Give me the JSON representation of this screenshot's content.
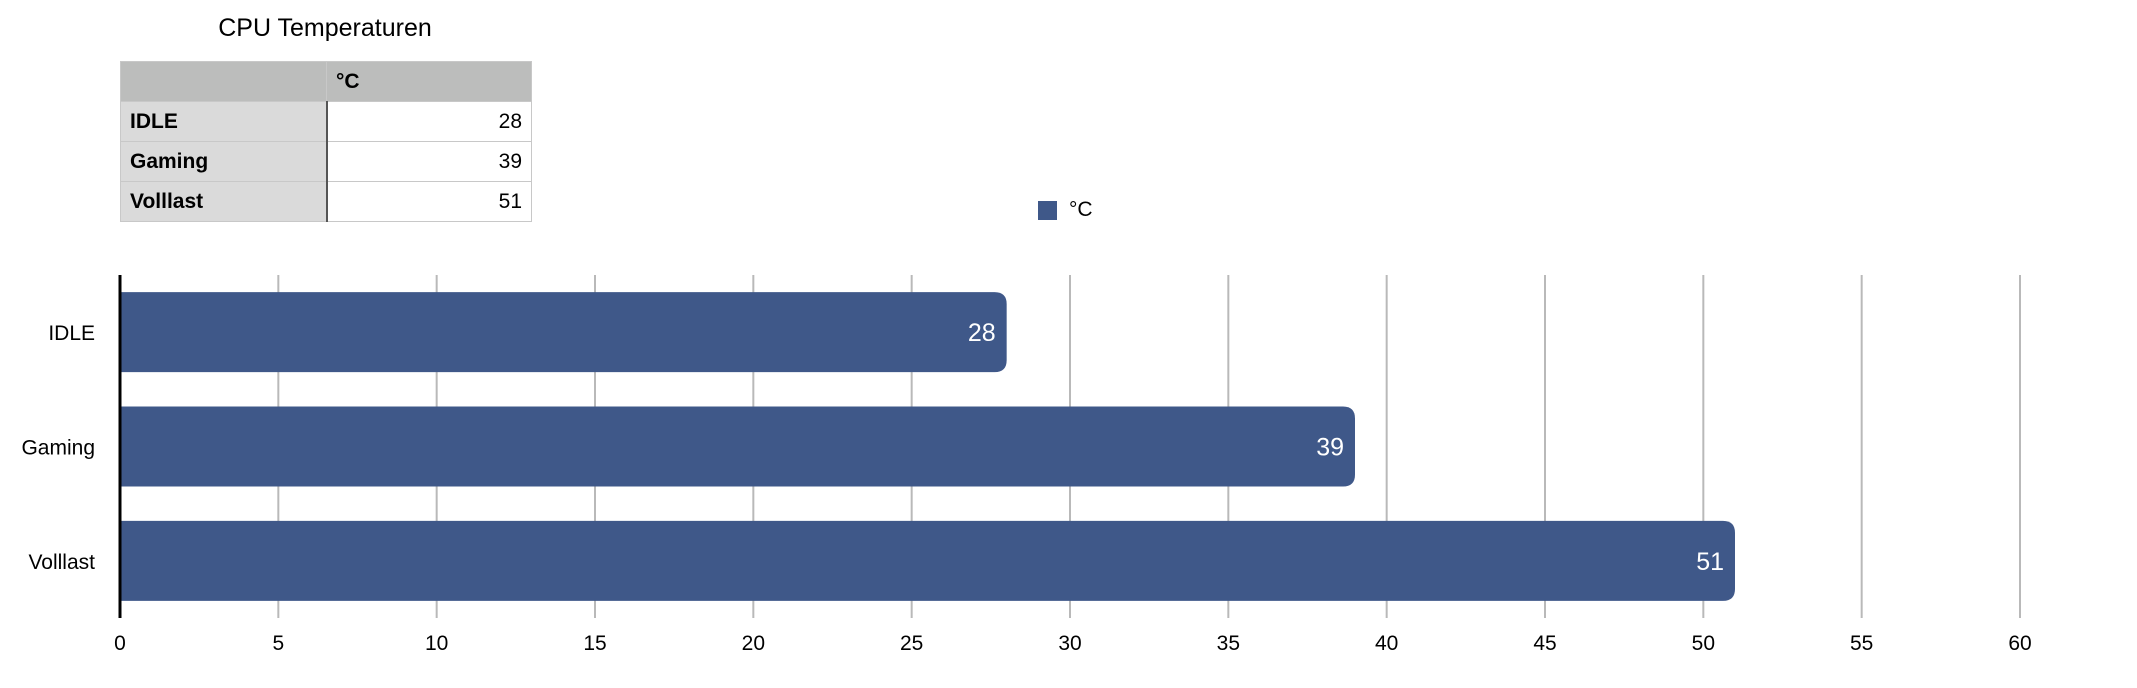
{
  "table": {
    "title": "CPU Temperaturen",
    "column_header": "°C",
    "rows": [
      {
        "label": "IDLE",
        "value": "28"
      },
      {
        "label": "Gaming",
        "value": "39"
      },
      {
        "label": "Volllast",
        "value": "51"
      }
    ]
  },
  "chart_data": {
    "type": "bar",
    "orientation": "horizontal",
    "categories": [
      "IDLE",
      "Gaming",
      "Volllast"
    ],
    "series": [
      {
        "name": "°C",
        "values": [
          28,
          39,
          51
        ],
        "color": "#3f5889"
      }
    ],
    "xlim": [
      0,
      60
    ],
    "xticks": [
      0,
      5,
      10,
      15,
      20,
      25,
      30,
      35,
      40,
      45,
      50,
      55,
      60
    ],
    "grid": true,
    "legend": "top-center",
    "data_labels": true
  }
}
